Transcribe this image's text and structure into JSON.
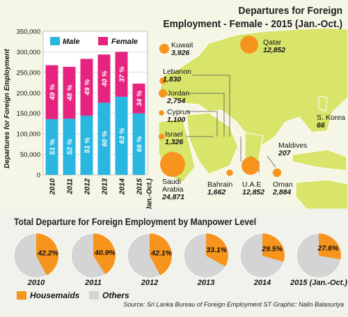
{
  "map": {
    "title_line1": "Departures for Foreign",
    "title_line2": "Employment - Female - 2015 (Jan.-Oct.)",
    "destinations": [
      {
        "name": "Kuwait",
        "value": "3,926"
      },
      {
        "name": "Qatar",
        "value": "12,852"
      },
      {
        "name": "Lebanon",
        "value": "1,830"
      },
      {
        "name": "Jordan",
        "value": "2,754"
      },
      {
        "name": "Cyprus",
        "value": "1,100"
      },
      {
        "name": "Israel",
        "value": "1,326"
      },
      {
        "name": "S. Korea",
        "value": "66"
      },
      {
        "name": "Maldives",
        "value": "207"
      },
      {
        "name": "Saudi Arabia",
        "value": "24,871"
      },
      {
        "name": "Bahrain",
        "value": "1,662"
      },
      {
        "name": "U.A.E",
        "value": "12,852"
      },
      {
        "name": "Oman",
        "value": "2,884"
      }
    ]
  },
  "chart_data": [
    {
      "type": "bar",
      "stacked": true,
      "categories": [
        "2010",
        "2011",
        "2012",
        "2013",
        "2014",
        "2015"
      ],
      "category_note": "(Jan.-Oct.)",
      "ylabel": "Departures for Foreign Employment",
      "ylim": [
        0,
        350000
      ],
      "yticks": [
        "0",
        "50,000",
        "100,000",
        "150,000",
        "200,000",
        "250,000",
        "300,000",
        "350,000"
      ],
      "legend_position": "top",
      "series": [
        {
          "name": "Male",
          "color": "#29b6e0",
          "values": [
            136000,
            137000,
            144500,
            176000,
            190500,
            150000
          ],
          "labels": [
            "51 %",
            "52 %",
            "51 %",
            "60 %",
            "63 %",
            "66 %"
          ]
        },
        {
          "name": "Female",
          "color": "#e6247f",
          "values": [
            131500,
            126500,
            138500,
            117500,
            109500,
            72500
          ],
          "labels": [
            "49 %",
            "48 %",
            "49 %",
            "40 %",
            "37 %",
            "34 %"
          ]
        }
      ]
    },
    {
      "type": "pie",
      "title": "Total Departure for Foreign Employment  by Manpower Level",
      "categories": [
        "2010",
        "2011",
        "2012",
        "2013",
        "2014",
        "2015 (Jan.-Oct.)"
      ],
      "series": [
        {
          "name": "Housemaids",
          "color": "#f7941d",
          "values": [
            42.2,
            40.9,
            42.1,
            33.1,
            29.5,
            27.6
          ],
          "labels": [
            "42.2%",
            "40.9%",
            "42.1%",
            "33.1%",
            "29.5%",
            "27.6%"
          ]
        },
        {
          "name": "Others",
          "color": "#d4d4d4",
          "values": [
            57.8,
            59.1,
            57.9,
            66.9,
            70.5,
            72.4
          ]
        }
      ]
    }
  ],
  "footer": {
    "source": "Source: Sri Lanka Bureau of Foreign Employment     ST Graphic: Nalin Balasuriya"
  }
}
